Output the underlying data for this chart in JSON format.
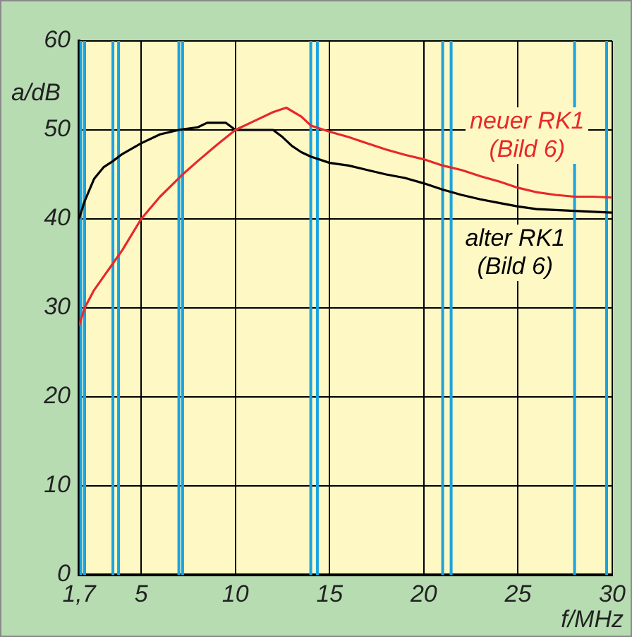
{
  "chart_data": {
    "type": "line",
    "xlabel": "f/MHz",
    "ylabel": "a/dB",
    "xlim": [
      1.7,
      30
    ],
    "xticks": [
      {
        "value": 1.7,
        "label": "1,7"
      },
      5,
      10,
      15,
      20,
      25,
      30
    ],
    "ylim": [
      0,
      60
    ],
    "yticks": [
      0,
      10,
      20,
      30,
      40,
      50,
      60
    ],
    "grid": true,
    "legend": false,
    "marker": "none",
    "line_style": "solid",
    "series": [
      {
        "name": "neuer RK1 (Bild 6)",
        "color": "#e8282a",
        "x": [
          1.7,
          2,
          2.5,
          3,
          3.5,
          4,
          5,
          6,
          7.2,
          8,
          9,
          10,
          11,
          12,
          12.7,
          13.5,
          14,
          15,
          16,
          17,
          18,
          19,
          20,
          21,
          22,
          23,
          24,
          25,
          26,
          27,
          28,
          29,
          30
        ],
        "values": [
          28,
          30,
          32,
          33.5,
          35,
          36.5,
          40,
          42.5,
          45,
          46.5,
          48.3,
          50,
          51,
          52,
          52.5,
          51.5,
          50.5,
          49.8,
          49.2,
          48.5,
          47.8,
          47.2,
          46.7,
          46,
          45.5,
          44.8,
          44.2,
          43.5,
          43,
          42.7,
          42.5,
          42.5,
          42.4
        ]
      },
      {
        "name": "alter RK1 (Bild 6)",
        "color": "#000000",
        "x": [
          1.7,
          2,
          2.5,
          3,
          3.5,
          4,
          5,
          6,
          7,
          8,
          8.5,
          9.5,
          10,
          11,
          12,
          12.5,
          13,
          13.5,
          14,
          15,
          16,
          17,
          18,
          19,
          20,
          21,
          22,
          23,
          24,
          25,
          26,
          27,
          28,
          29,
          30
        ],
        "values": [
          40,
          42,
          44.5,
          45.8,
          46.5,
          47.3,
          48.5,
          49.5,
          50,
          50.3,
          50.8,
          50.8,
          50,
          50,
          50,
          49.2,
          48.2,
          47.5,
          47,
          46.3,
          46,
          45.5,
          45,
          44.6,
          44,
          43.3,
          42.7,
          42.2,
          41.8,
          41.4,
          41.1,
          41,
          40.9,
          40.8,
          40.7
        ]
      }
    ],
    "ref_lines": [
      {
        "axis": "x",
        "value": 1.8,
        "color": "#1aa3e0"
      },
      {
        "axis": "x",
        "value": 2.0,
        "color": "#1aa3e0"
      },
      {
        "axis": "x",
        "value": 3.5,
        "color": "#1aa3e0"
      },
      {
        "axis": "x",
        "value": 3.8,
        "color": "#1aa3e0"
      },
      {
        "axis": "x",
        "value": 7.0,
        "color": "#1aa3e0"
      },
      {
        "axis": "x",
        "value": 7.2,
        "color": "#1aa3e0"
      },
      {
        "axis": "x",
        "value": 14.0,
        "color": "#1aa3e0"
      },
      {
        "axis": "x",
        "value": 14.35,
        "color": "#1aa3e0"
      },
      {
        "axis": "x",
        "value": 21.0,
        "color": "#1aa3e0"
      },
      {
        "axis": "x",
        "value": 21.45,
        "color": "#1aa3e0"
      },
      {
        "axis": "x",
        "value": 28.0,
        "color": "#1aa3e0"
      },
      {
        "axis": "x",
        "value": 29.7,
        "color": "#1aa3e0"
      }
    ]
  }
}
